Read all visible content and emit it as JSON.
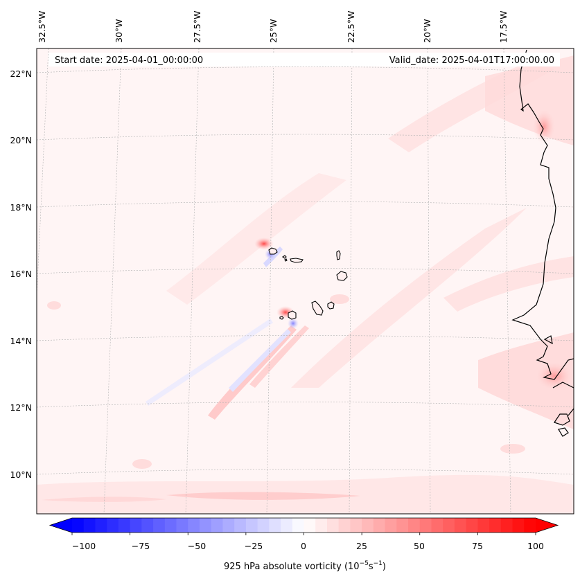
{
  "map": {
    "start_date_label": "Start date: 2025-04-01_00:00:00",
    "valid_date_label": "Valid_date: 2025-04-01T17:00:00.00",
    "longitude_labels": [
      "32.5°W",
      "30°W",
      "27.5°W",
      "25°W",
      "22.5°W",
      "20°W",
      "17.5°W"
    ],
    "latitude_labels": [
      "22°N",
      "20°N",
      "18°N",
      "16°N",
      "14°N",
      "12°N",
      "10°N"
    ],
    "region": "Cape Verde islands and West African coast",
    "field": "925 hPa absolute vorticity"
  },
  "colorbar": {
    "label_main": "925 hPa absolute vorticity (10",
    "label_exp1": "−5",
    "label_mid": "s",
    "label_exp2": "−1",
    "label_end": ")",
    "ticks": [
      "−100",
      "−75",
      "−50",
      "−25",
      "0",
      "25",
      "50",
      "75",
      "100"
    ],
    "min": -100,
    "max": 100,
    "levels": 41,
    "colors": {
      "negative": "#0000ff",
      "zero": "#ffffff",
      "positive": "#ff0000"
    }
  }
}
